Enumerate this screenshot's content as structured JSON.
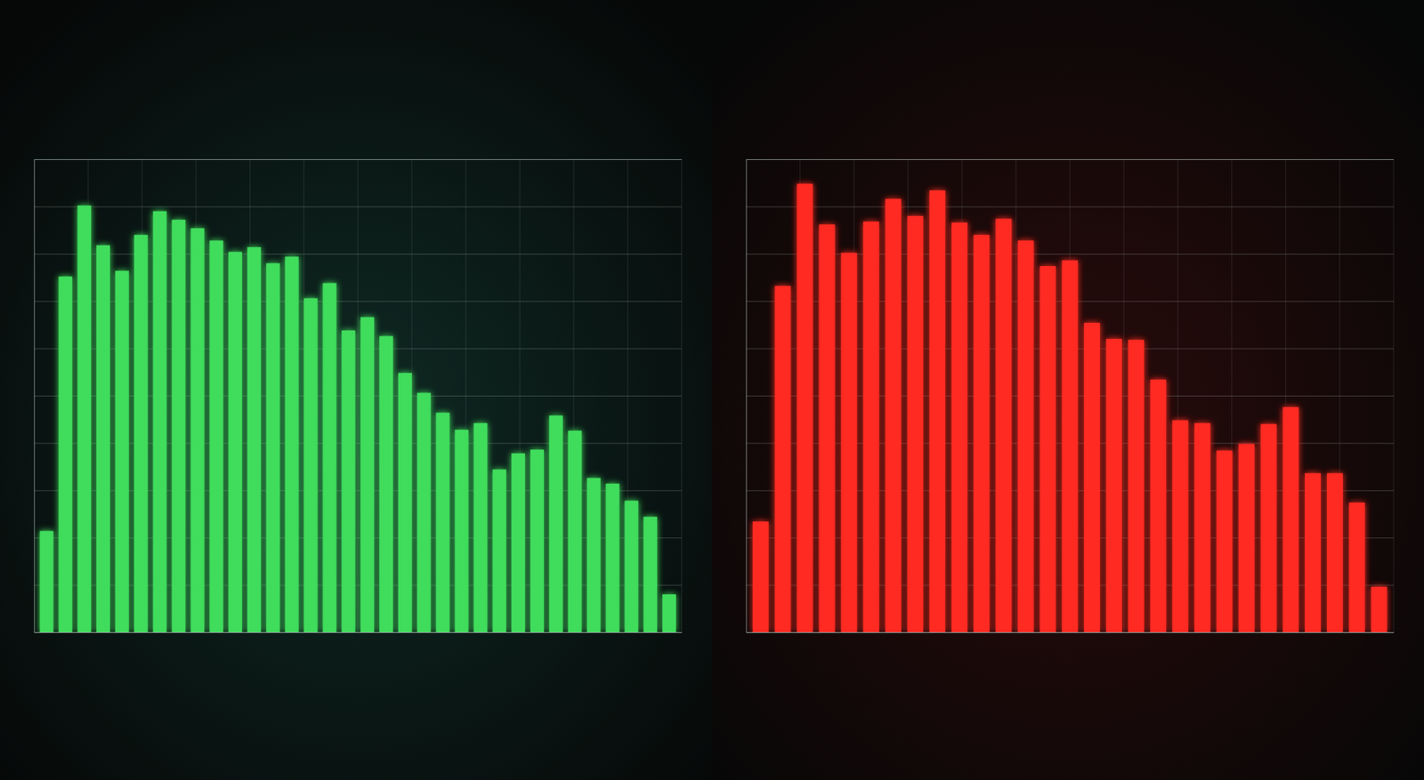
{
  "chart_data": [
    {
      "type": "bar",
      "color": "#3fdc5c",
      "grid": true,
      "tick_labels": false,
      "categories": [
        null,
        null,
        null,
        null,
        null,
        null,
        null,
        null,
        null,
        null,
        null,
        null,
        null,
        null,
        null,
        null,
        null,
        null,
        null,
        null,
        null,
        null,
        null,
        null,
        null,
        null,
        null,
        null,
        null,
        null,
        null,
        null,
        null,
        null
      ],
      "values": [
        10.7,
        37.6,
        45.1,
        40.9,
        38.2,
        42,
        44.5,
        43.6,
        42.7,
        41.4,
        40.2,
        40.7,
        39,
        39.7,
        35.3,
        36.9,
        31.9,
        33.3,
        31.3,
        27.4,
        25.3,
        23.2,
        21.4,
        22.1,
        17.2,
        18.9,
        19.3,
        22.9,
        21.3,
        16.3,
        15.7,
        13.9,
        12.2,
        4
      ],
      "ylim": [
        0,
        50
      ],
      "yticks": [
        0,
        5,
        10,
        15,
        20,
        25,
        30,
        35,
        40,
        45,
        50
      ]
    },
    {
      "type": "bar",
      "color": "#ff2b20",
      "grid": true,
      "tick_labels": false,
      "categories": [
        null,
        null,
        null,
        null,
        null,
        null,
        null,
        null,
        null,
        null,
        null,
        null,
        null,
        null,
        null,
        null,
        null,
        null,
        null,
        null,
        null,
        null,
        null,
        null,
        null,
        null,
        null,
        null,
        null
      ],
      "values": [
        11.7,
        36.6,
        47.4,
        43.1,
        40.1,
        43.4,
        45.8,
        44,
        46.7,
        43.3,
        42,
        43.7,
        41.4,
        38.7,
        39.3,
        32.7,
        31,
        30.9,
        26.7,
        22.4,
        22.1,
        19.2,
        19.9,
        22,
        23.8,
        16.8,
        16.8,
        13.7,
        4.8
      ],
      "ylim": [
        0,
        50
      ],
      "yticks": [
        0,
        5,
        10,
        15,
        20,
        25,
        30,
        35,
        40,
        45,
        50
      ]
    }
  ]
}
